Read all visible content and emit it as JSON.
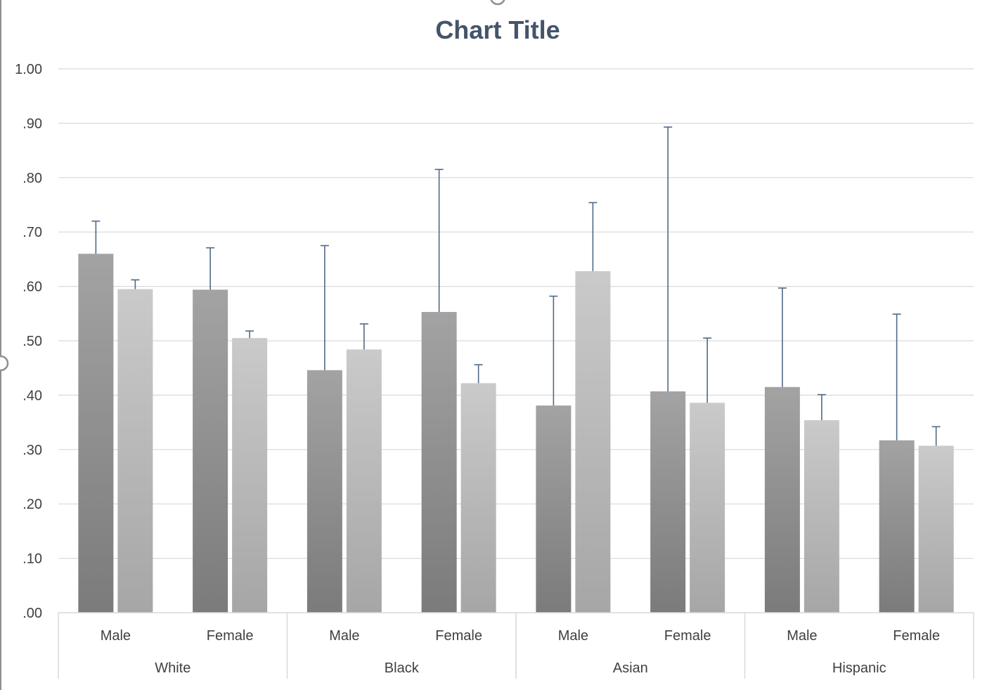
{
  "chart_data": {
    "type": "bar",
    "title": "Chart Title",
    "xlabel": "",
    "ylabel": "",
    "ylim": [
      0,
      1.0
    ],
    "yticks": [
      ".00",
      ".10",
      ".20",
      ".30",
      ".40",
      ".50",
      ".60",
      ".70",
      ".80",
      ".90",
      "1.00"
    ],
    "groups": [
      "White",
      "Black",
      "Asian",
      "Hispanic"
    ],
    "subgroups": [
      "Male",
      "Female"
    ],
    "categories": [
      "Male",
      "Female",
      "Male",
      "Female",
      "Male",
      "Female",
      "Male",
      "Female"
    ],
    "series": [
      {
        "color": "#8c8c8c",
        "values": [
          0.66,
          0.594,
          0.446,
          0.553,
          0.381,
          0.407,
          0.415,
          0.317
        ],
        "error_upper": [
          0.72,
          0.671,
          0.675,
          0.815,
          0.582,
          0.893,
          0.597,
          0.549
        ]
      },
      {
        "color": "#bfbfbf",
        "values": [
          0.595,
          0.505,
          0.484,
          0.422,
          0.628,
          0.386,
          0.354,
          0.307
        ],
        "error_upper": [
          0.612,
          0.518,
          0.531,
          0.456,
          0.754,
          0.505,
          0.401,
          0.342
        ]
      }
    ],
    "grid": true,
    "legend": "none"
  }
}
